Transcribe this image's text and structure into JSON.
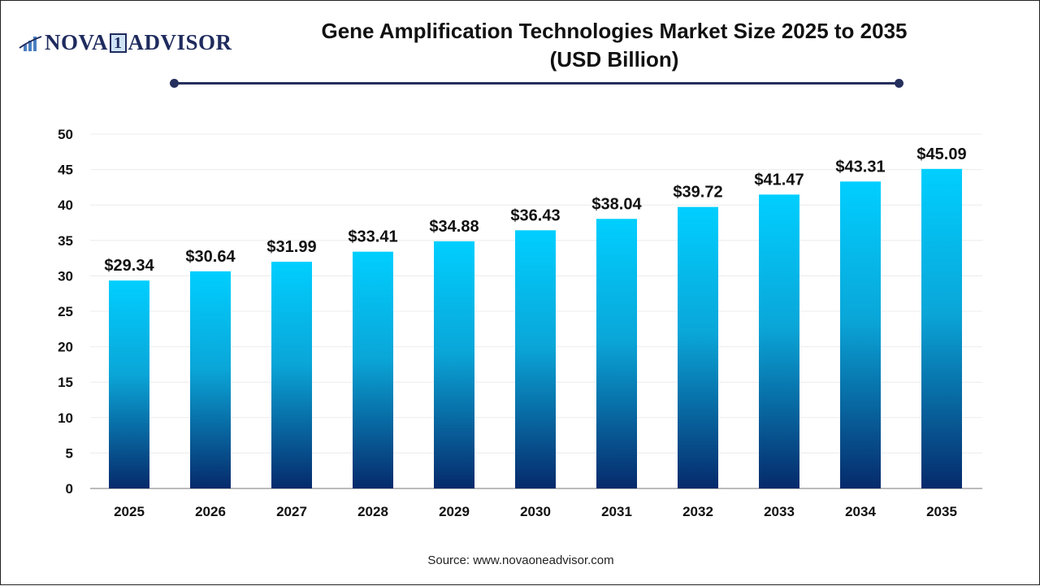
{
  "logo": {
    "text_left": "NOVA",
    "text_box": "1",
    "text_right": "ADVISOR"
  },
  "chart_data": {
    "type": "bar",
    "title": "Gene Amplification Technologies Market Size 2025 to 2035",
    "subtitle": "(USD Billion)",
    "categories": [
      "2025",
      "2026",
      "2027",
      "2028",
      "2029",
      "2030",
      "2031",
      "2032",
      "2033",
      "2034",
      "2035"
    ],
    "values": [
      29.34,
      30.64,
      31.99,
      33.41,
      34.88,
      36.43,
      38.04,
      39.72,
      41.47,
      43.31,
      45.09
    ],
    "data_labels": [
      "$29.34",
      "$30.64",
      "$31.99",
      "$33.41",
      "$34.88",
      "$36.43",
      "$38.04",
      "$39.72",
      "$41.47",
      "$43.31",
      "$45.09"
    ],
    "ylim": [
      0,
      50
    ],
    "yticks": [
      0,
      5,
      10,
      15,
      20,
      25,
      30,
      35,
      40,
      45,
      50
    ],
    "grid": true,
    "xlabel": "",
    "ylabel": "",
    "colors": {
      "bar_top": "#00cfff",
      "bar_bottom": "#062a6b",
      "accent": "#26305e"
    }
  },
  "source": "Source: www.novaoneadvisor.com"
}
